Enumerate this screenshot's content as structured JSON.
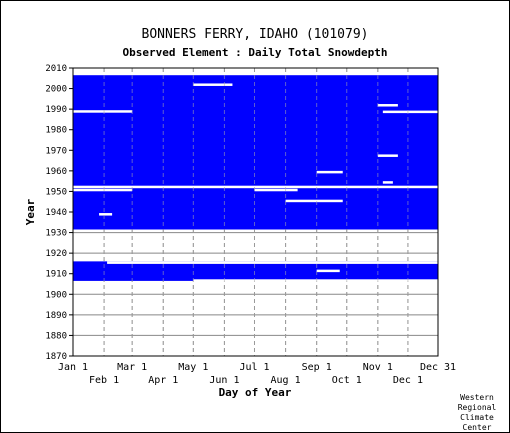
{
  "chart_data": {
    "type": "heatmap",
    "title": "BONNERS FERRY, IDAHO   (101079)",
    "subtitle": "Observed Element : Daily Total Snowdepth",
    "xlabel": "Day of Year",
    "ylabel": "Year",
    "xlim": [
      1,
      365
    ],
    "ylim": [
      1870,
      2010
    ],
    "yticks": [
      2010,
      2000,
      1990,
      1980,
      1970,
      1960,
      1950,
      1940,
      1930,
      1920,
      1910,
      1900,
      1890,
      1880,
      1870
    ],
    "xticks_top": [
      {
        "label": "Jan 1",
        "day": 1
      },
      {
        "label": "Mar 1",
        "day": 60
      },
      {
        "label": "May 1",
        "day": 121
      },
      {
        "label": "Jul 1",
        "day": 182
      },
      {
        "label": "Sep 1",
        "day": 244
      },
      {
        "label": "Nov 1",
        "day": 305
      },
      {
        "label": "Dec 31",
        "day": 365
      }
    ],
    "xticks_bottom": [
      {
        "label": "Feb 1",
        "day": 32
      },
      {
        "label": "Apr 1",
        "day": 91
      },
      {
        "label": "Jun 1",
        "day": 152
      },
      {
        "label": "Aug 1",
        "day": 213
      },
      {
        "label": "Oct 1",
        "day": 274
      },
      {
        "label": "Dec 1",
        "day": 335
      }
    ],
    "grid": true,
    "data_color": "#0000ff",
    "observed_periods": [
      {
        "from_year": 1906.5,
        "to_year": 1916,
        "from_day": 1,
        "to_day": 365
      },
      {
        "from_year": 1931.5,
        "to_year": 2006.5,
        "from_day": 1,
        "to_day": 365
      }
    ],
    "gaps": [
      {
        "year": 1952.3,
        "from_day": 1,
        "to_day": 365
      },
      {
        "year": 1950.8,
        "from_day": 1,
        "to_day": 60
      },
      {
        "year": 1989,
        "from_day": 1,
        "to_day": 60
      },
      {
        "year": 1988.8,
        "from_day": 310,
        "to_day": 365
      },
      {
        "year": 1992,
        "from_day": 305,
        "to_day": 325
      },
      {
        "year": 2002,
        "from_day": 121,
        "to_day": 160
      },
      {
        "year": 1967.5,
        "from_day": 305,
        "to_day": 325
      },
      {
        "year": 1959.5,
        "from_day": 244,
        "to_day": 270
      },
      {
        "year": 1954.5,
        "from_day": 310,
        "to_day": 320
      },
      {
        "year": 1945.5,
        "from_day": 213,
        "to_day": 270
      },
      {
        "year": 1950.8,
        "from_day": 182,
        "to_day": 225
      },
      {
        "year": 1939,
        "from_day": 27,
        "to_day": 40
      },
      {
        "year": 1911.5,
        "from_day": 244,
        "to_day": 267
      },
      {
        "year": 1906.8,
        "from_day": 121,
        "to_day": 365
      },
      {
        "year": 1915.5,
        "from_day": 35,
        "to_day": 365
      }
    ]
  },
  "credit": [
    "Western",
    "Regional",
    "Climate",
    "Center"
  ]
}
